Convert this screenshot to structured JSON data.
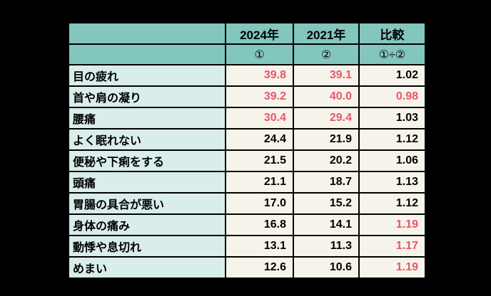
{
  "page": {
    "background": "#000000"
  },
  "table": {
    "colors": {
      "header_bg": "#82C6BD",
      "label_bg": "#D9EDEB",
      "cell_bg": "#F6F3EA",
      "border": "#000000",
      "text": "#000000",
      "red_text": "#E8566A"
    },
    "header": {
      "corner": "",
      "col_2024": "2024年",
      "col_2021": "2021年",
      "col_compare": "比較",
      "sub_corner": "",
      "sub_2024": "①",
      "sub_2021": "②",
      "sub_compare": "①÷②"
    },
    "rows": [
      {
        "label": "目の疲れ",
        "y2024": "39.8",
        "y2021": "39.1",
        "ratio": "1.02",
        "y2024_red": true,
        "y2021_red": true,
        "ratio_red": false
      },
      {
        "label": "首や肩の凝り",
        "y2024": "39.2",
        "y2021": "40.0",
        "ratio": "0.98",
        "y2024_red": true,
        "y2021_red": true,
        "ratio_red": true
      },
      {
        "label": "腰痛",
        "y2024": "30.4",
        "y2021": "29.4",
        "ratio": "1.03",
        "y2024_red": true,
        "y2021_red": true,
        "ratio_red": false
      },
      {
        "label": "よく眠れない",
        "y2024": "24.4",
        "y2021": "21.9",
        "ratio": "1.12",
        "y2024_red": false,
        "y2021_red": false,
        "ratio_red": false
      },
      {
        "label": "便秘や下痢をする",
        "y2024": "21.5",
        "y2021": "20.2",
        "ratio": "1.06",
        "y2024_red": false,
        "y2021_red": false,
        "ratio_red": false
      },
      {
        "label": "頭痛",
        "y2024": "21.1",
        "y2021": "18.7",
        "ratio": "1.13",
        "y2024_red": false,
        "y2021_red": false,
        "ratio_red": false
      },
      {
        "label": "胃腸の具合が悪い",
        "y2024": "17.0",
        "y2021": "15.2",
        "ratio": "1.12",
        "y2024_red": false,
        "y2021_red": false,
        "ratio_red": false
      },
      {
        "label": "身体の痛み",
        "y2024": "16.8",
        "y2021": "14.1",
        "ratio": "1.19",
        "y2024_red": false,
        "y2021_red": false,
        "ratio_red": true
      },
      {
        "label": "動悸や息切れ",
        "y2024": "13.1",
        "y2021": "11.3",
        "ratio": "1.17",
        "y2024_red": false,
        "y2021_red": false,
        "ratio_red": true
      },
      {
        "label": "めまい",
        "y2024": "12.6",
        "y2021": "10.6",
        "ratio": "1.19",
        "y2024_red": false,
        "y2021_red": false,
        "ratio_red": true
      }
    ]
  },
  "chart_data": {
    "type": "table",
    "title": "",
    "columns": [
      "",
      "2024年 ①",
      "2021年 ②",
      "比較 ①÷②"
    ],
    "categories": [
      "目の疲れ",
      "首や肩の凝り",
      "腰痛",
      "よく眠れない",
      "便秘や下痢をする",
      "頭痛",
      "胃腸の具合が悪い",
      "身体の痛み",
      "動悸や息切れ",
      "めまい"
    ],
    "series": [
      {
        "name": "2024年(①)",
        "values": [
          39.8,
          39.2,
          30.4,
          24.4,
          21.5,
          21.1,
          17.0,
          16.8,
          13.1,
          12.6
        ]
      },
      {
        "name": "2021年(②)",
        "values": [
          39.1,
          40.0,
          29.4,
          21.9,
          20.2,
          18.7,
          15.2,
          14.1,
          11.3,
          10.6
        ]
      },
      {
        "name": "比較(①÷②)",
        "values": [
          1.02,
          0.98,
          1.03,
          1.12,
          1.06,
          1.13,
          1.12,
          1.19,
          1.17,
          1.19
        ]
      }
    ],
    "highlight_red_cells": {
      "2024年(①)": [
        39.8,
        39.2,
        30.4
      ],
      "2021年(②)": [
        39.1,
        40.0,
        29.4
      ],
      "比較(①÷②)": [
        0.98,
        1.19,
        1.17,
        1.19
      ]
    }
  }
}
